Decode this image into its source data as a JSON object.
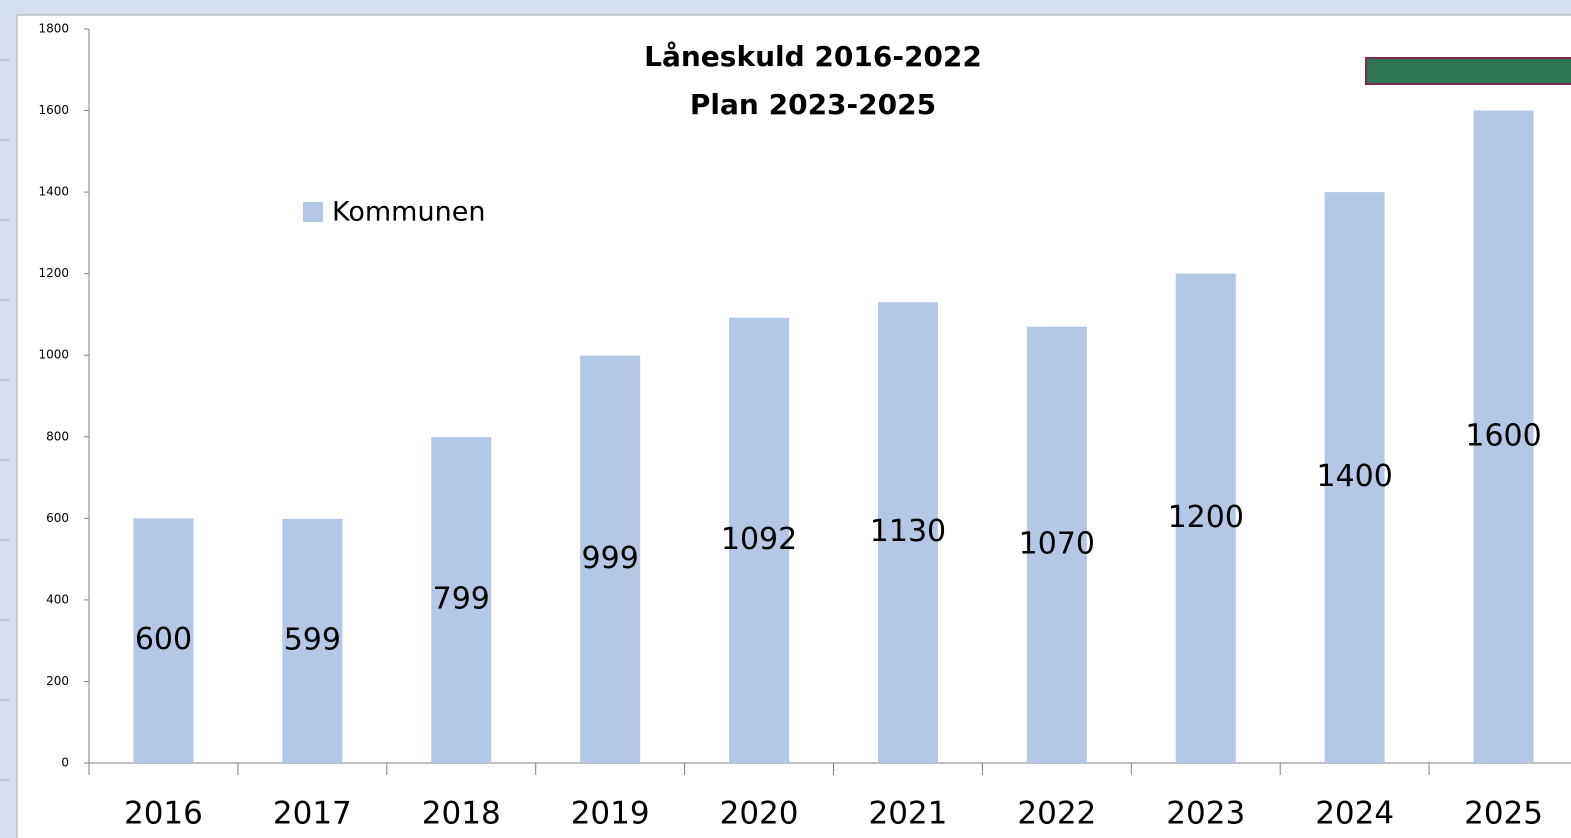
{
  "chart_data": {
    "type": "bar",
    "title": "Låneskuld  2016-2022",
    "subtitle": "Plan 2023-2025",
    "categories": [
      "2016",
      "2017",
      "2018",
      "2019",
      "2020",
      "2021",
      "2022",
      "2023",
      "2024",
      "2025"
    ],
    "series": [
      {
        "name": "Kommunen",
        "color": "#b4c7e7",
        "values": [
          600,
          599,
          799,
          999,
          1092,
          1130,
          1070,
          1200,
          1400,
          1600
        ]
      }
    ],
    "ylim": [
      0,
      1800
    ],
    "yticks": [
      0,
      200,
      400,
      600,
      800,
      1000,
      1200,
      1400,
      1600,
      1800
    ],
    "legend": "upper left",
    "grid": false
  }
}
